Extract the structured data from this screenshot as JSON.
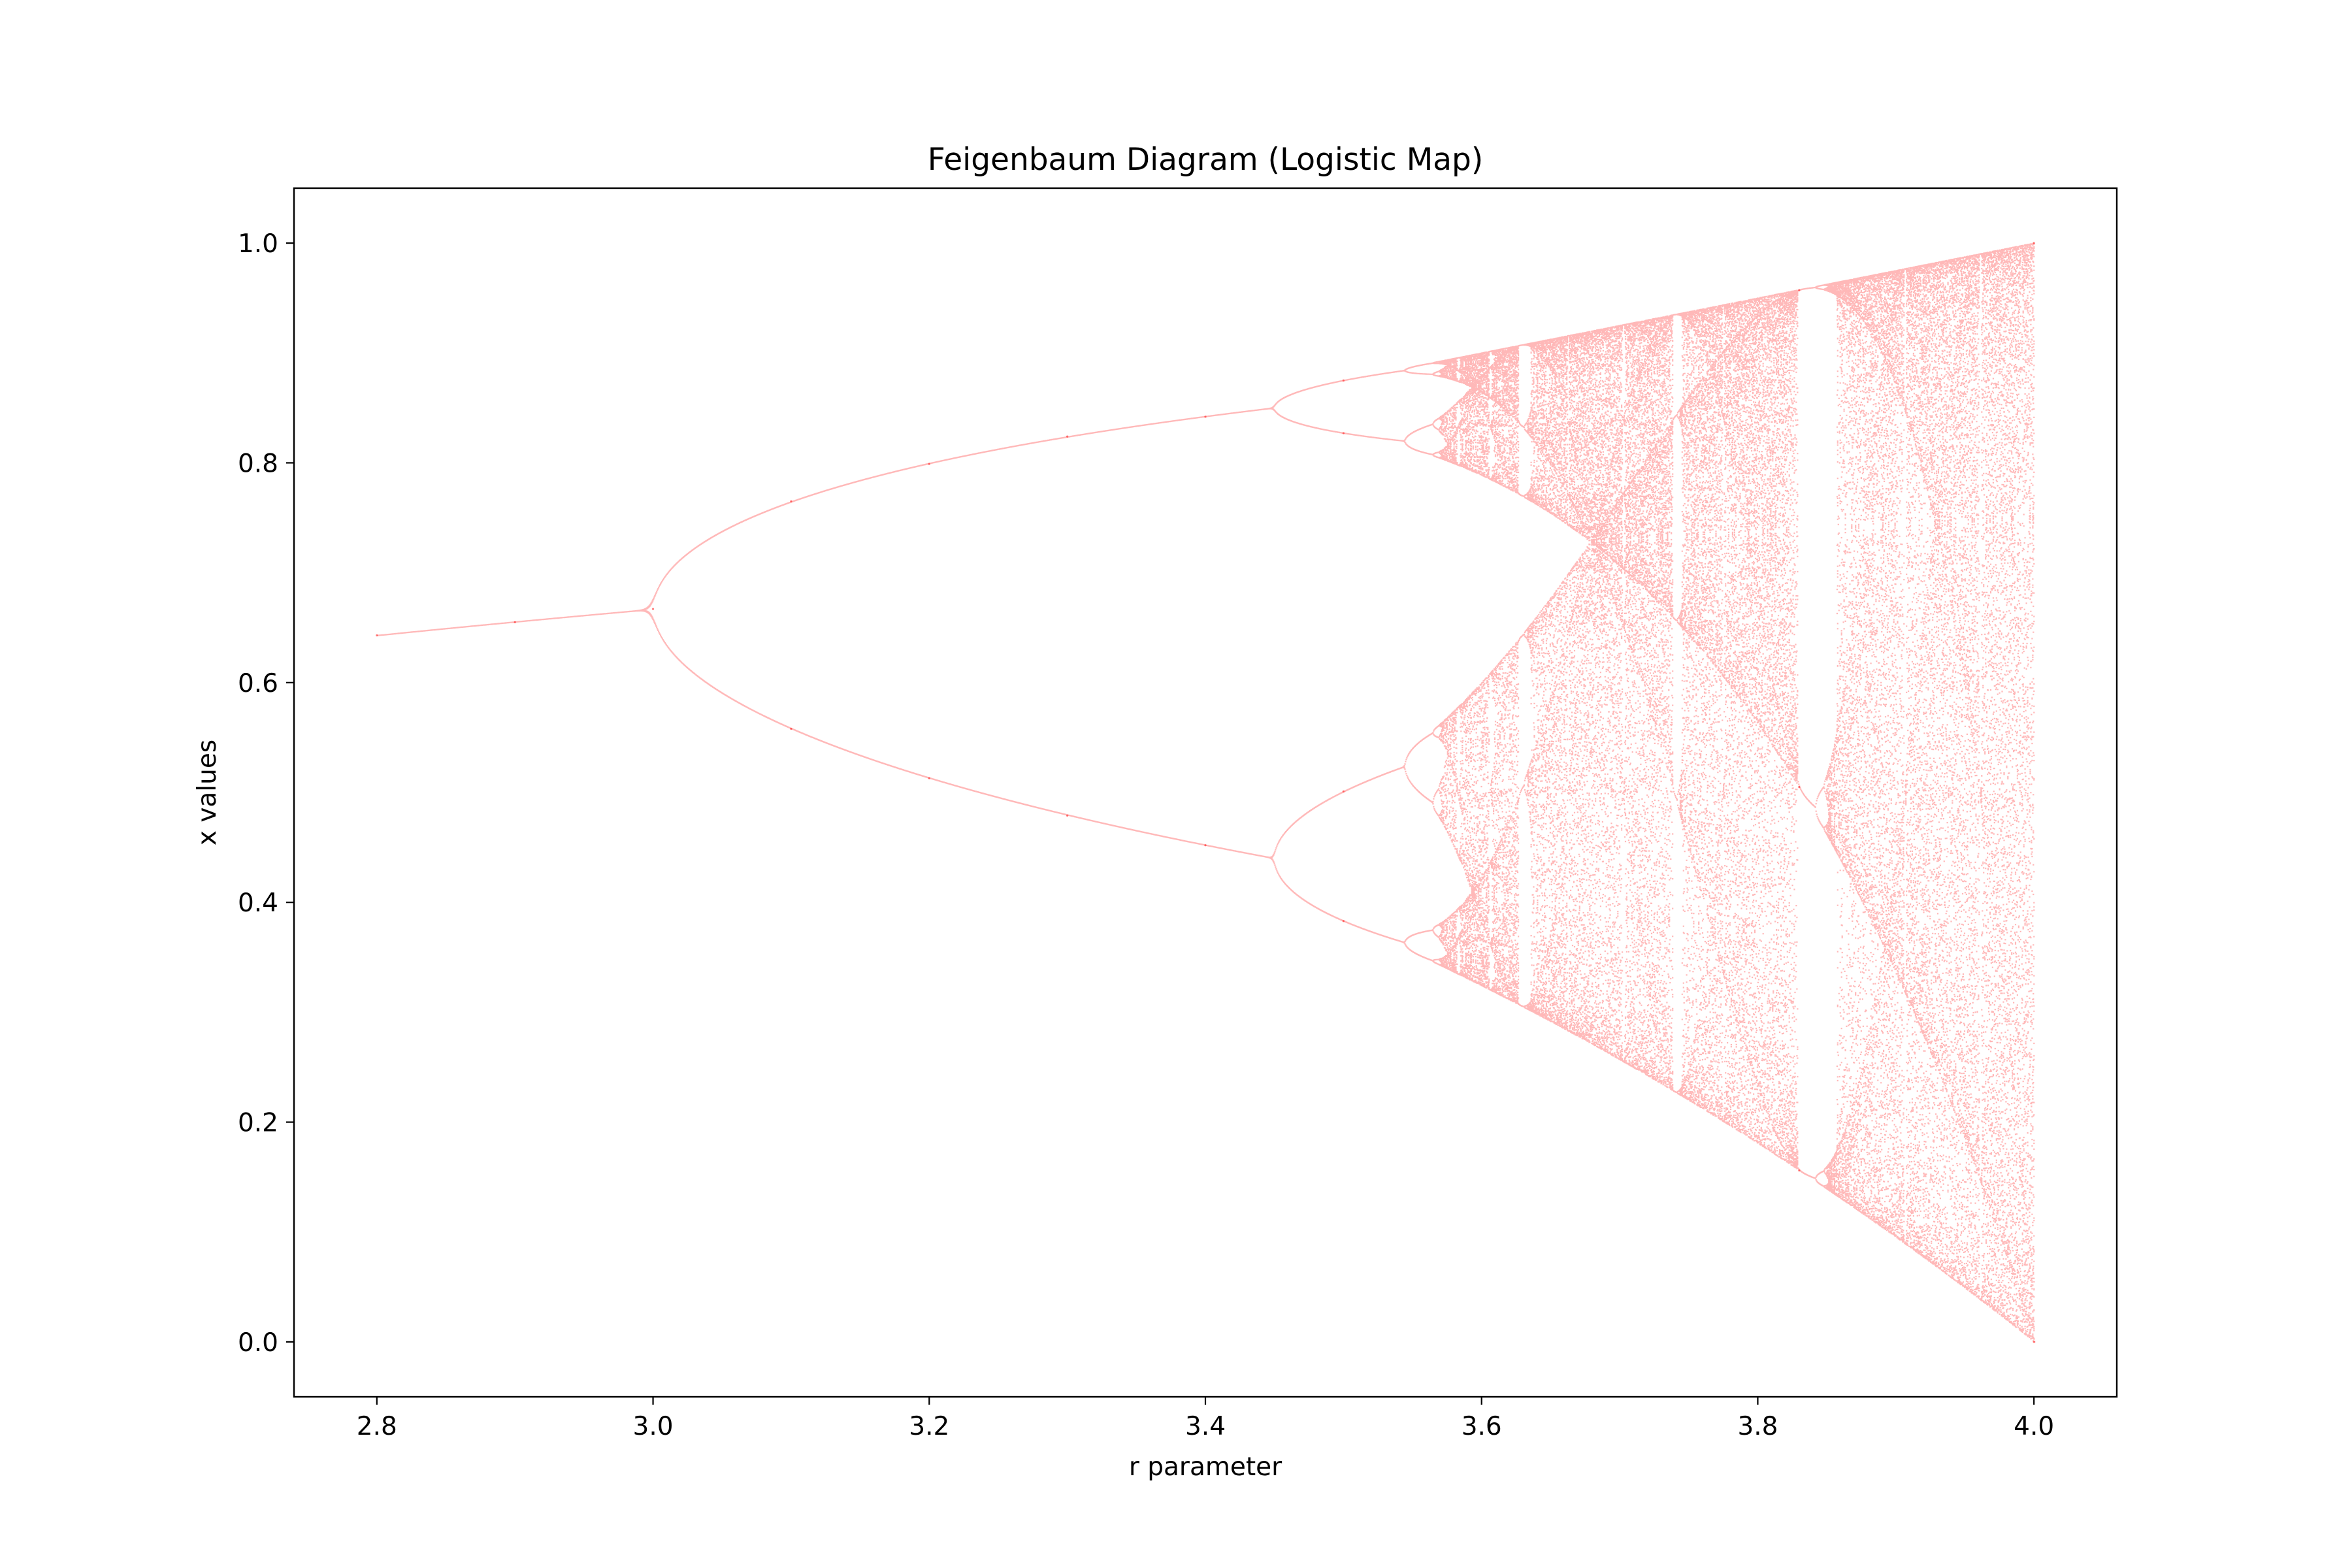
{
  "chart_data": {
    "type": "scatter",
    "title": "Feigenbaum Diagram (Logistic Map)",
    "xlabel": "r parameter",
    "ylabel": "x values",
    "xlim": [
      2.74,
      4.06
    ],
    "ylim": [
      -0.05,
      1.05
    ],
    "xticks": [
      2.8,
      3.0,
      3.2,
      3.4,
      3.6,
      3.8,
      4.0
    ],
    "xtick_labels": [
      "2.8",
      "3.0",
      "3.2",
      "3.4",
      "3.6",
      "3.8",
      "4.0"
    ],
    "yticks": [
      0.0,
      0.2,
      0.4,
      0.6,
      0.8,
      1.0
    ],
    "ytick_labels": [
      "0.0",
      "0.2",
      "0.4",
      "0.6",
      "0.8",
      "1.0"
    ],
    "grid": false,
    "marker_color": "#ff0000",
    "series": [
      {
        "generator": "logistic map x(n+1) = r * x(n) * (1 - x(n))",
        "r_range": [
          2.8,
          4.0
        ],
        "points": [
          [
            2.8,
            0.643
          ],
          [
            2.9,
            0.655
          ],
          [
            3.0,
            0.667
          ],
          [
            3.1,
            0.558
          ],
          [
            3.1,
            0.765
          ],
          [
            3.2,
            0.513
          ],
          [
            3.2,
            0.799
          ],
          [
            3.3,
            0.479
          ],
          [
            3.3,
            0.824
          ],
          [
            3.4,
            0.452
          ],
          [
            3.4,
            0.842
          ],
          [
            3.5,
            0.383
          ],
          [
            3.5,
            0.501
          ],
          [
            3.5,
            0.827
          ],
          [
            3.5,
            0.875
          ],
          [
            3.83,
            0.156
          ],
          [
            3.83,
            0.505
          ],
          [
            3.83,
            0.957
          ],
          [
            4.0,
            0.0
          ],
          [
            4.0,
            1.0
          ]
        ]
      }
    ]
  }
}
